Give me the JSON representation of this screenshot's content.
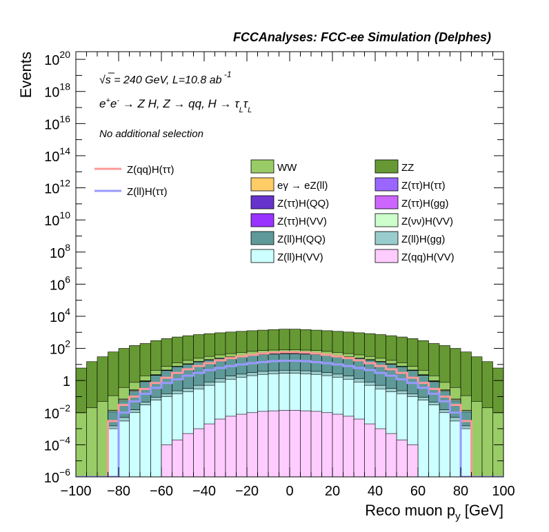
{
  "chart_data": {
    "type": "histogram",
    "title": "FCCAnalyses: FCC-ee Simulation (Delphes)",
    "annotations": {
      "energy_lumi": "√s = 240 GeV, L=10.8 ab⁻¹",
      "process": "e⁺e⁻ → Z H, Z → qq, H → τ_L τ_L",
      "selection": "No additional selection"
    },
    "xlabel": "Reco muon p_y [GeV]",
    "ylabel": "Events",
    "xlim": [
      -100,
      100
    ],
    "ylim": [
      1e-06,
      3e+20
    ],
    "yscale": "log",
    "x_ticks": [
      "−100",
      "−80",
      "−60",
      "−40",
      "−20",
      "0",
      "20",
      "40",
      "60",
      "80",
      "100"
    ],
    "y_ticks": [
      {
        "base": "10",
        "exp": "−6",
        "value": 1e-06
      },
      {
        "base": "10",
        "exp": "−4",
        "value": 0.0001
      },
      {
        "base": "10",
        "exp": "−2",
        "value": 0.01
      },
      {
        "base": "1",
        "exp": "",
        "value": 1
      },
      {
        "base": "10",
        "exp": "2",
        "value": 100.0
      },
      {
        "base": "10",
        "exp": "4",
        "value": 10000.0
      },
      {
        "base": "10",
        "exp": "6",
        "value": 1000000.0
      },
      {
        "base": "10",
        "exp": "8",
        "value": 100000000.0
      },
      {
        "base": "10",
        "exp": "10",
        "value": 10000000000.0
      },
      {
        "base": "10",
        "exp": "12",
        "value": 1000000000000.0
      },
      {
        "base": "10",
        "exp": "14",
        "value": 100000000000000.0
      },
      {
        "base": "10",
        "exp": "16",
        "value": 1e+16
      },
      {
        "base": "10",
        "exp": "18",
        "value": 1e+18
      },
      {
        "base": "10",
        "exp": "20",
        "value": 1e+20
      }
    ],
    "bin_edges": [
      -100,
      -95,
      -90,
      -85,
      -80,
      -75,
      -70,
      -65,
      -60,
      -55,
      -50,
      -45,
      -40,
      -35,
      -30,
      -25,
      -20,
      -15,
      -10,
      -5,
      0,
      5,
      10,
      15,
      20,
      25,
      30,
      35,
      40,
      45,
      50,
      55,
      60,
      65,
      70,
      75,
      80,
      85,
      90,
      95,
      100
    ],
    "stacked_backgrounds": [
      {
        "name": "Z(qq)H(VV)",
        "color": "#ffccff",
        "values": [
          0,
          0,
          0,
          0,
          0,
          0,
          0,
          0,
          0.0001,
          0.0002,
          0.0005,
          0.001,
          0.002,
          0.004,
          0.006,
          0.008,
          0.01,
          0.012,
          0.013,
          0.014,
          0.014,
          0.013,
          0.012,
          0.01,
          0.008,
          0.006,
          0.004,
          0.002,
          0.001,
          0.0005,
          0.0002,
          0.0001,
          0,
          0,
          0,
          0,
          0,
          0,
          0,
          0
        ]
      },
      {
        "name": "Z(ll)H(VV)",
        "color": "#ccffff",
        "values": [
          0,
          0,
          0,
          0.001,
          0.003,
          0.01,
          0.03,
          0.06,
          0.1,
          0.15,
          0.2,
          0.3,
          0.5,
          0.8,
          1.2,
          1.6,
          2,
          2.4,
          2.6,
          2.8,
          2.8,
          2.6,
          2.4,
          2,
          1.6,
          1.2,
          0.8,
          0.5,
          0.3,
          0.2,
          0.15,
          0.1,
          0.06,
          0.03,
          0.01,
          0.003,
          0.001,
          0,
          0,
          0
        ]
      },
      {
        "name": "Z(ll)H(gg)",
        "color": "#99cccc",
        "values": [
          0,
          0,
          0,
          0.0005,
          0.002,
          0.005,
          0.015,
          0.03,
          0.05,
          0.08,
          0.12,
          0.2,
          0.3,
          0.5,
          0.7,
          0.9,
          1.1,
          1.3,
          1.4,
          1.5,
          1.5,
          1.4,
          1.3,
          1.1,
          0.9,
          0.7,
          0.5,
          0.3,
          0.2,
          0.12,
          0.08,
          0.05,
          0.03,
          0.015,
          0.005,
          0.002,
          0.0005,
          0,
          0,
          0
        ]
      },
      {
        "name": "Z(ll)H(QQ)",
        "color": "#5f9999",
        "values": [
          0,
          0,
          0,
          0.01,
          0.05,
          0.2,
          0.8,
          2,
          4,
          7,
          10,
          14,
          18,
          22,
          26,
          30,
          34,
          38,
          40,
          42,
          42,
          40,
          38,
          34,
          30,
          26,
          22,
          18,
          14,
          10,
          7,
          4,
          2,
          0.8,
          0.2,
          0.05,
          0.01,
          0,
          0,
          0
        ]
      },
      {
        "name": "Z(νν)H(VV)",
        "color": "#ccffcc",
        "values": [
          0,
          0,
          0,
          0.002,
          0.01,
          0.03,
          0.06,
          0.1,
          0.15,
          0.2,
          0.25,
          0.3,
          0.35,
          0.4,
          0.45,
          0.5,
          0.55,
          0.6,
          0.62,
          0.64,
          0.64,
          0.62,
          0.6,
          0.55,
          0.5,
          0.45,
          0.4,
          0.35,
          0.3,
          0.25,
          0.2,
          0.15,
          0.1,
          0.06,
          0.03,
          0.01,
          0.002,
          0,
          0,
          0
        ]
      },
      {
        "name": "Z(ττ)H(VV)",
        "color": "#9933ff",
        "values": [
          0,
          0,
          0,
          0,
          0.0002,
          0.001,
          0.004,
          0.01,
          0.02,
          0.04,
          0.06,
          0.09,
          0.12,
          0.16,
          0.2,
          0.24,
          0.28,
          0.3,
          0.32,
          0.33,
          0.33,
          0.32,
          0.3,
          0.28,
          0.24,
          0.2,
          0.16,
          0.12,
          0.09,
          0.06,
          0.04,
          0.02,
          0.01,
          0.004,
          0.001,
          0.0002,
          0,
          0,
          0,
          0
        ]
      },
      {
        "name": "Z(ττ)H(gg)",
        "color": "#cc66ff",
        "values": [
          0,
          0,
          0,
          0,
          0,
          0,
          0,
          0,
          0,
          0,
          0,
          0.003,
          0.008,
          0.01,
          0.015,
          0.02,
          0.025,
          0.03,
          0.032,
          0.033,
          0.033,
          0.032,
          0.03,
          0.025,
          0.02,
          0.015,
          0.01,
          0.008,
          0.003,
          0,
          0,
          0,
          0,
          0,
          0,
          0,
          0,
          0,
          0,
          0
        ]
      },
      {
        "name": "Z(ττ)H(QQ)",
        "color": "#6633cc",
        "values": [
          0,
          0,
          0,
          0,
          0,
          0.0005,
          0.003,
          0.008,
          0.02,
          0.04,
          0.07,
          0.1,
          0.15,
          0.2,
          0.3,
          0.4,
          0.5,
          0.6,
          0.7,
          0.8,
          0.8,
          0.7,
          0.6,
          0.5,
          0.4,
          0.3,
          0.2,
          0.15,
          0.1,
          0.07,
          0.04,
          0.02,
          0.008,
          0.003,
          0.0005,
          0,
          0,
          0,
          0,
          0
        ]
      },
      {
        "name": "Z(ττ)H(ττ)",
        "color": "#9966ff",
        "values": [
          0,
          0,
          0,
          0,
          0.0001,
          0.0005,
          0.002,
          0.005,
          0.01,
          0.02,
          0.03,
          0.04,
          0.05,
          0.06,
          0.07,
          0.08,
          0.09,
          0.1,
          0.1,
          0.1,
          0.1,
          0.1,
          0.1,
          0.09,
          0.08,
          0.07,
          0.06,
          0.05,
          0.04,
          0.03,
          0.02,
          0.01,
          0.005,
          0.002,
          0.0005,
          0.0001,
          0,
          0,
          0,
          0
        ]
      },
      {
        "name": "eγ → eZ(ll)",
        "color": "#ffcc66",
        "values": [
          0,
          0,
          0,
          0.0005,
          0.005,
          0.02,
          0.05,
          0.1,
          0.15,
          0.2,
          0.25,
          0.3,
          0.35,
          0.4,
          0.45,
          0.5,
          0.55,
          0.6,
          0.6,
          0.6,
          0.6,
          0.6,
          0.6,
          0.55,
          0.5,
          0.45,
          0.4,
          0.35,
          0.3,
          0.25,
          0.2,
          0.15,
          0.1,
          0.05,
          0.02,
          0.005,
          0.0005,
          0,
          0,
          0
        ]
      },
      {
        "name": "WW",
        "color": "#99cc66",
        "values": [
          0.01,
          0.02,
          0.05,
          0.1,
          0.3,
          0.5,
          1,
          2,
          3,
          5,
          7,
          9,
          12,
          15,
          18,
          22,
          26,
          30,
          32,
          34,
          34,
          32,
          30,
          26,
          22,
          18,
          15,
          12,
          9,
          7,
          5,
          3,
          2,
          1,
          0.5,
          0.3,
          0.1,
          0.05,
          0.02,
          0.01
        ]
      },
      {
        "name": "ZZ",
        "color": "#669933",
        "values": [
          6,
          15,
          30,
          60,
          100,
          150,
          200,
          300,
          400,
          500,
          600,
          700,
          800,
          900,
          1000,
          1100,
          1200,
          1300,
          1400,
          1500,
          1500,
          1400,
          1300,
          1200,
          1100,
          1000,
          900,
          800,
          700,
          600,
          500,
          400,
          300,
          200,
          150,
          100,
          60,
          30,
          15,
          6
        ]
      }
    ],
    "signal_lines": [
      {
        "name": "Z(qq)H(ττ)",
        "color": "#ff9999",
        "values": [
          0,
          0,
          0,
          0.003,
          0.03,
          0.1,
          0.3,
          0.7,
          1.5,
          3,
          5,
          8,
          12,
          18,
          25,
          32,
          40,
          48,
          54,
          58,
          58,
          54,
          48,
          40,
          32,
          25,
          18,
          12,
          8,
          5,
          3,
          1.5,
          0.7,
          0.3,
          0.1,
          0.03,
          0.003,
          0,
          0,
          0
        ]
      },
      {
        "name": "Z(ll)H(ττ)",
        "color": "#9999ff",
        "values": [
          0,
          0,
          0,
          0,
          0.01,
          0.05,
          0.15,
          0.35,
          0.7,
          1.2,
          2,
          3,
          4.5,
          6,
          8,
          10,
          12,
          14,
          16,
          17,
          17,
          16,
          14,
          12,
          10,
          8,
          6,
          4.5,
          3,
          2,
          1.2,
          0.7,
          0.35,
          0.15,
          0.05,
          0.01,
          0,
          0,
          0,
          0
        ]
      }
    ],
    "legend_left": [
      "Z(qq)H(ττ)",
      "Z(ll)H(ττ)"
    ],
    "legend_grid": [
      [
        "WW",
        "ZZ"
      ],
      [
        "eγ → eZ(ll)",
        "Z(ττ)H(ττ)"
      ],
      [
        "Z(ττ)H(QQ)",
        "Z(ττ)H(gg)"
      ],
      [
        "Z(ττ)H(VV)",
        "Z(νν)H(VV)"
      ],
      [
        "Z(ll)H(QQ)",
        "Z(ll)H(gg)"
      ],
      [
        "Z(ll)H(VV)",
        "Z(qq)H(VV)"
      ]
    ],
    "legend_placement": "top",
    "grid": false
  }
}
